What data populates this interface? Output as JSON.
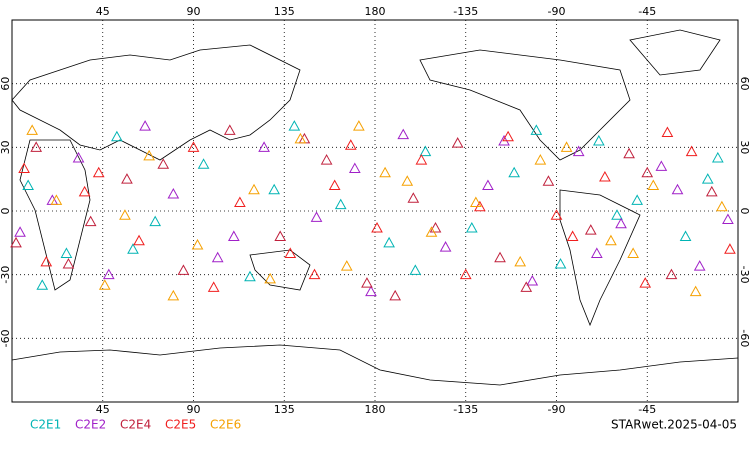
{
  "chart_data": {
    "type": "scatter",
    "xlim": [
      0,
      360
    ],
    "ylim": [
      -90,
      90
    ],
    "xticks": [
      45,
      90,
      135,
      180,
      {
        "value": 225,
        "label": "-135"
      },
      {
        "value": 270,
        "label": "-90"
      },
      {
        "value": 315,
        "label": "-45"
      }
    ],
    "yticks": [
      60,
      30,
      0,
      -30,
      -60
    ],
    "grid": true,
    "series": [
      {
        "name": "C2E1",
        "color": "#00b4b4",
        "x": [
          8,
          27,
          52,
          71,
          95,
          118,
          140,
          163,
          187,
          205,
          228,
          249,
          272,
          291,
          310,
          334,
          350,
          15,
          60,
          130,
          200,
          260,
          300,
          345
        ],
        "values": [
          12,
          -20,
          35,
          -5,
          22,
          -31,
          40,
          3,
          -15,
          28,
          -8,
          18,
          -25,
          33,
          5,
          -12,
          25,
          -35,
          -18,
          10,
          -28,
          38,
          -2,
          15
        ]
      },
      {
        "name": "C2E2",
        "color": "#a020c8",
        "x": [
          4,
          33,
          48,
          80,
          102,
          125,
          151,
          170,
          194,
          215,
          236,
          258,
          281,
          302,
          322,
          341,
          20,
          66,
          110,
          178,
          244,
          290,
          330,
          355
        ],
        "values": [
          -10,
          25,
          -30,
          8,
          -22,
          30,
          -3,
          20,
          36,
          -17,
          12,
          -33,
          28,
          -6,
          21,
          -26,
          5,
          40,
          -12,
          -38,
          33,
          -20,
          10,
          -4
        ]
      },
      {
        "name": "C2E4",
        "color": "#c0203c",
        "x": [
          12,
          39,
          57,
          85,
          108,
          133,
          156,
          176,
          199,
          221,
          242,
          266,
          287,
          306,
          327,
          347,
          28,
          75,
          145,
          210,
          255,
          315,
          2,
          190
        ],
        "values": [
          30,
          -5,
          15,
          -28,
          38,
          -12,
          24,
          -34,
          6,
          32,
          -22,
          14,
          -9,
          27,
          -30,
          9,
          -25,
          22,
          34,
          -8,
          -36,
          18,
          -15,
          -40
        ]
      },
      {
        "name": "C2E5",
        "color": "#f01e1e",
        "x": [
          17,
          43,
          63,
          90,
          113,
          138,
          160,
          181,
          203,
          225,
          246,
          270,
          294,
          314,
          337,
          356,
          36,
          100,
          168,
          232,
          278,
          325,
          6,
          150
        ],
        "values": [
          -24,
          18,
          -14,
          30,
          4,
          -20,
          12,
          -8,
          24,
          -30,
          35,
          -2,
          16,
          -34,
          28,
          -18,
          9,
          -36,
          31,
          2,
          -12,
          37,
          20,
          -30
        ]
      },
      {
        "name": "C2E6",
        "color": "#f5a000",
        "x": [
          22,
          46,
          68,
          92,
          120,
          143,
          166,
          185,
          208,
          230,
          252,
          275,
          297,
          318,
          339,
          10,
          56,
          128,
          196,
          262,
          308,
          352,
          80,
          172
        ],
        "values": [
          5,
          -35,
          26,
          -16,
          10,
          34,
          -26,
          18,
          -10,
          4,
          -24,
          30,
          -14,
          12,
          -38,
          38,
          -2,
          -32,
          14,
          24,
          -20,
          2,
          -40,
          40
        ]
      }
    ],
    "footer": "STARwet.2025-04-05"
  }
}
